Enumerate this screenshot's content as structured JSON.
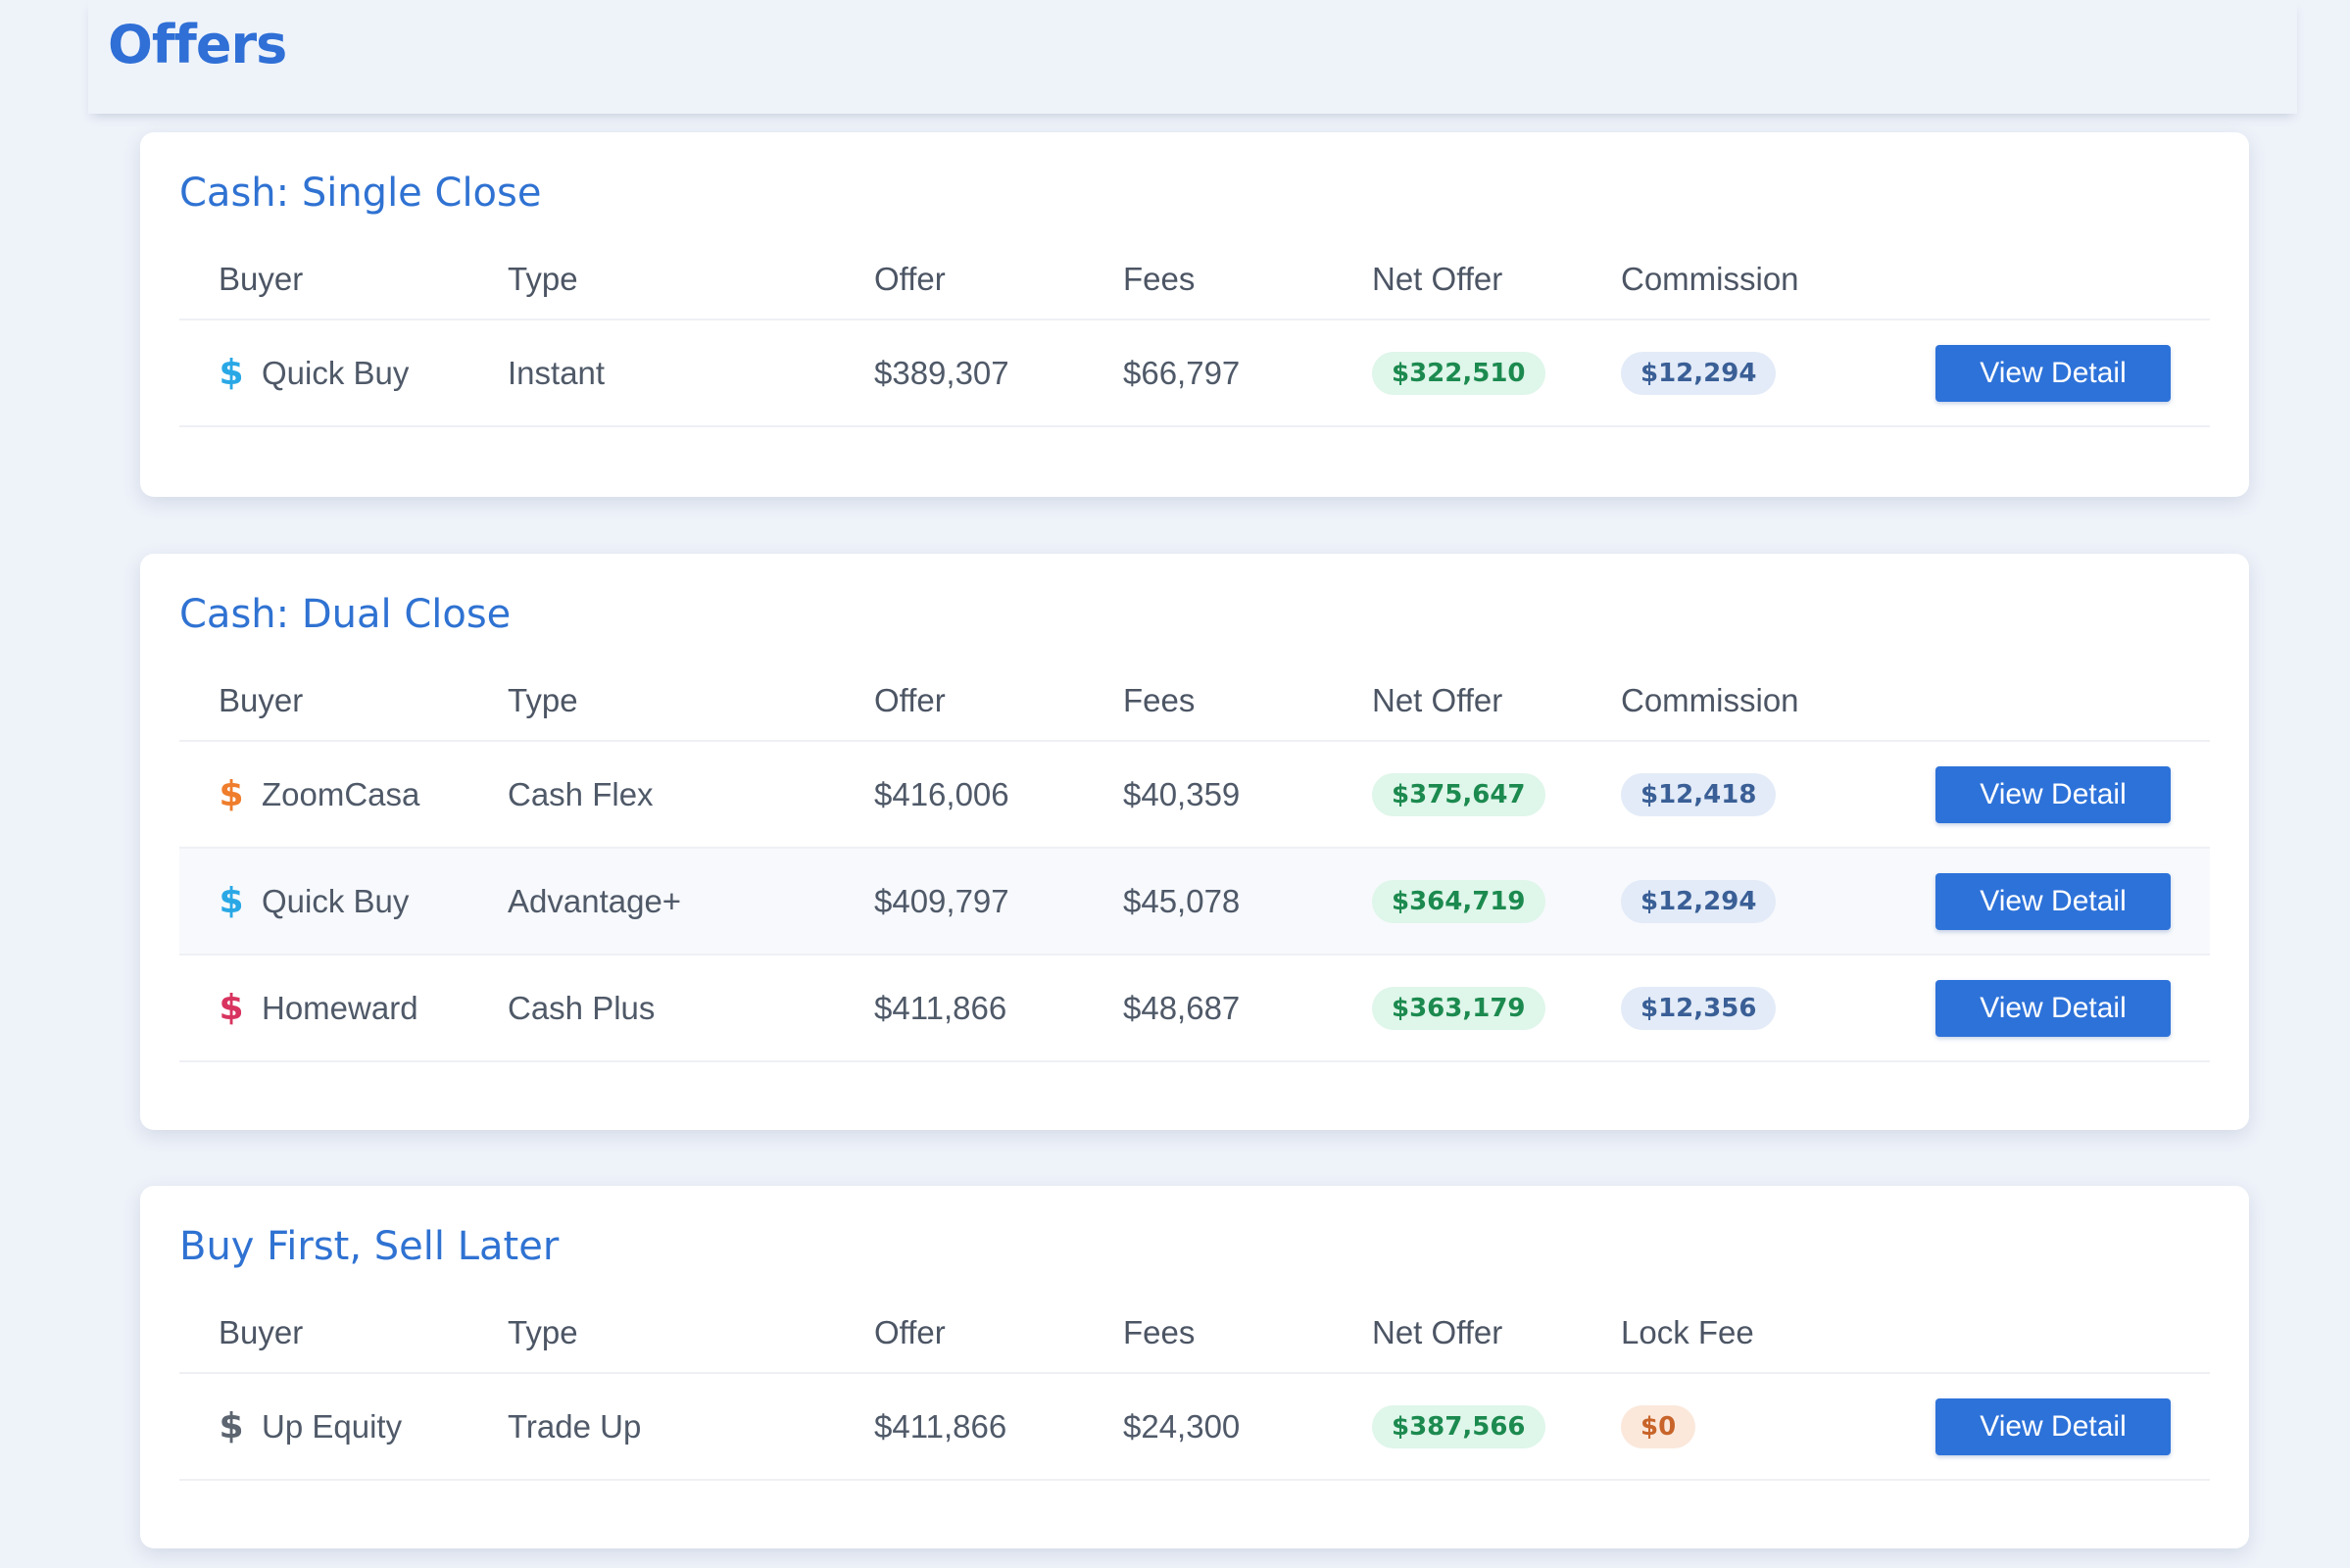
{
  "page": {
    "title": "Offers"
  },
  "colors": {
    "accent": "#2f72d2",
    "button": "#2d72d9",
    "net_pill_bg": "#dff6ea",
    "net_pill_text": "#1c8a4f",
    "commission_pill_bg": "#e3ebf8",
    "commission_pill_text": "#3a5f96",
    "lock_fee_pill_bg": "#fbe8db",
    "lock_fee_pill_text": "#c8642a"
  },
  "sections": [
    {
      "title": "Cash: Single Close",
      "columns": {
        "buyer": "Buyer",
        "type": "Type",
        "offer": "Offer",
        "fees": "Fees",
        "net": "Net Offer",
        "extra": "Commission"
      },
      "rows": [
        {
          "buyer": "Quick Buy",
          "icon": "dollar-icon",
          "icon_color": "#2aa8e6",
          "type": "Instant",
          "offer": "$389,307",
          "fees": "$66,797",
          "net": "$322,510",
          "extra": "$12,294",
          "action": "View Detail"
        }
      ]
    },
    {
      "title": "Cash: Dual Close",
      "columns": {
        "buyer": "Buyer",
        "type": "Type",
        "offer": "Offer",
        "fees": "Fees",
        "net": "Net Offer",
        "extra": "Commission"
      },
      "rows": [
        {
          "buyer": "ZoomCasa",
          "icon": "dollar-icon",
          "icon_color": "#ef7d2c",
          "type": "Cash Flex",
          "offer": "$416,006",
          "fees": "$40,359",
          "net": "$375,647",
          "extra": "$12,418",
          "action": "View Detail"
        },
        {
          "buyer": "Quick Buy",
          "icon": "dollar-icon",
          "icon_color": "#2aa8e6",
          "type": "Advantage+",
          "offer": "$409,797",
          "fees": "$45,078",
          "net": "$364,719",
          "extra": "$12,294",
          "action": "View Detail"
        },
        {
          "buyer": "Homeward",
          "icon": "dollar-icon",
          "icon_color": "#d8345f",
          "type": "Cash Plus",
          "offer": "$411,866",
          "fees": "$48,687",
          "net": "$363,179",
          "extra": "$12,356",
          "action": "View Detail"
        }
      ]
    },
    {
      "title": "Buy First, Sell Later",
      "columns": {
        "buyer": "Buyer",
        "type": "Type",
        "offer": "Offer",
        "fees": "Fees",
        "net": "Net Offer",
        "extra": "Lock Fee"
      },
      "rows": [
        {
          "buyer": "Up Equity",
          "icon": "dollar-icon",
          "icon_color": "#5c6470",
          "type": "Trade Up",
          "offer": "$411,866",
          "fees": "$24,300",
          "net": "$387,566",
          "extra": "$0",
          "action": "View Detail"
        }
      ]
    }
  ]
}
